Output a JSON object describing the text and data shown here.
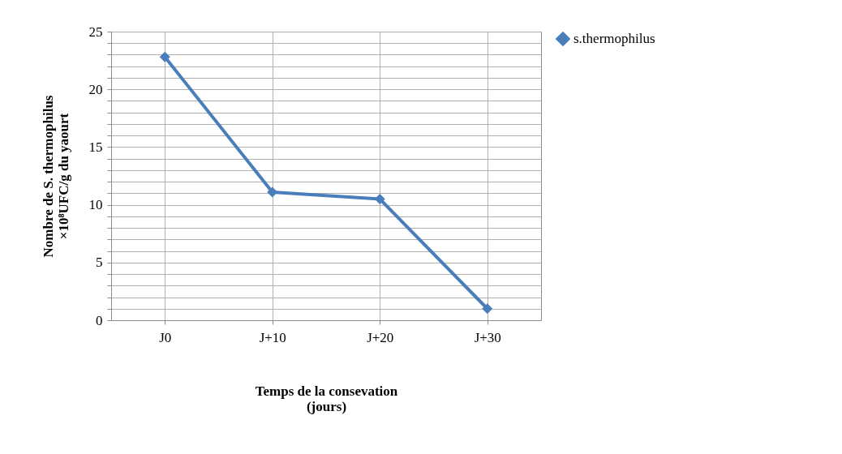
{
  "chart_data": {
    "type": "line",
    "categories": [
      "J0",
      "J+10",
      "J+20",
      "J+30"
    ],
    "series": [
      {
        "name": "s.thermophilus",
        "color": "#4a7ebb",
        "values": [
          22.8,
          11.1,
          10.5,
          1.0
        ]
      }
    ],
    "xlabel": "Temps de la consevation\n(jours)",
    "ylabel": "Nombre de S. thermophilus\n×10⁸UFC/g du yaourt",
    "ylim": [
      0,
      25
    ],
    "yticks": [
      0,
      {
        "value": 1,
        "label": null
      },
      {
        "value": 2,
        "label": null
      },
      {
        "value": 3,
        "label": null
      },
      {
        "value": 4,
        "label": null
      },
      5,
      {
        "value": 6,
        "label": null
      },
      {
        "value": 7,
        "label": null
      },
      {
        "value": 8,
        "label": null
      },
      {
        "value": 9,
        "label": null
      },
      10,
      {
        "value": 11,
        "label": null
      },
      {
        "value": 12,
        "label": null
      },
      {
        "value": 13,
        "label": null
      },
      {
        "value": 14,
        "label": null
      },
      15,
      {
        "value": 16,
        "label": null
      },
      {
        "value": 17,
        "label": null
      },
      {
        "value": 18,
        "label": null
      },
      {
        "value": 19,
        "label": null
      },
      20,
      {
        "value": 21,
        "label": null
      },
      {
        "value": 22,
        "label": null
      },
      {
        "value": 23,
        "label": null
      },
      {
        "value": 24,
        "label": null
      },
      25
    ],
    "grid": true,
    "legend": "right",
    "marker": "diamond",
    "line_style": "solid"
  }
}
